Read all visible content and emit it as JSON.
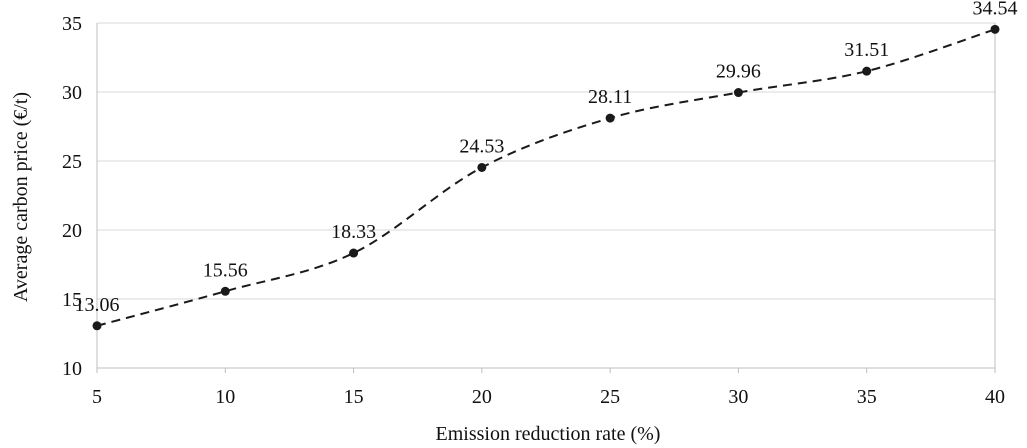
{
  "chart_data": {
    "type": "line",
    "title": "",
    "xlabel": "Emission reduction rate (%)",
    "ylabel": "Average carbon price  (€/t)",
    "x": [
      5,
      10,
      15,
      20,
      25,
      30,
      35,
      40
    ],
    "series": [
      {
        "values": [
          13.06,
          15.56,
          18.33,
          24.53,
          28.11,
          29.96,
          31.51,
          34.54
        ],
        "labels": [
          "13.06",
          "15.56",
          "18.33",
          "24.53",
          "28.11",
          "29.96",
          "31.51",
          "34.54"
        ]
      }
    ],
    "xlim": [
      5,
      40
    ],
    "ylim": [
      10,
      35
    ],
    "xticks": [
      5,
      10,
      15,
      20,
      25,
      30,
      35,
      40
    ],
    "yticks": [
      10,
      15,
      20,
      25,
      30,
      35
    ],
    "xtick_labels": [
      "5",
      "10",
      "15",
      "20",
      "25",
      "30",
      "35",
      "40"
    ],
    "ytick_labels": [
      "10",
      "15",
      "20",
      "25",
      "30",
      "35"
    ],
    "grid": "horizontal",
    "line_style": "dashed",
    "smooth": true,
    "marker": "circle",
    "colors": {
      "line": "#1a1a1a",
      "marker": "#1a1a1a",
      "grid": "#d9d9d9",
      "axis": "#bfbfbf",
      "text": "#111111"
    }
  }
}
